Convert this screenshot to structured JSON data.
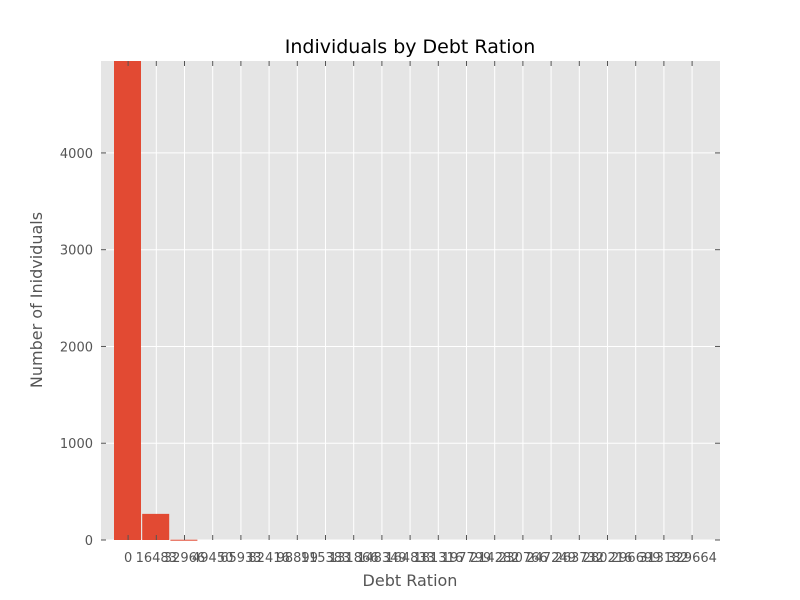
{
  "chart_data": {
    "type": "bar",
    "title": "Individuals by Debt Ration",
    "xlabel": "Debt Ration",
    "ylabel": "Number of Inidviduals",
    "categories": [
      "0",
      "16483",
      "32966",
      "49450",
      "65933",
      "82416",
      "98899",
      "115383",
      "131866",
      "148349",
      "164833",
      "181316",
      "197799",
      "214282",
      "230766",
      "247249",
      "263732",
      "280216",
      "296699",
      "313182",
      "329664"
    ],
    "values": [
      4950,
      270,
      3,
      0,
      0,
      0,
      0,
      0,
      0,
      0,
      0,
      0,
      0,
      0,
      0,
      0,
      0,
      0,
      0,
      0,
      0
    ],
    "yticks": [
      0,
      1000,
      2000,
      3000,
      4000
    ],
    "ylim": [
      0,
      4950
    ],
    "grid": true,
    "colors": {
      "bar": "#E24A33",
      "plot_bg": "#E5E5E5",
      "grid": "#FFFFFF",
      "text": "#555555",
      "title": "#000000"
    }
  }
}
